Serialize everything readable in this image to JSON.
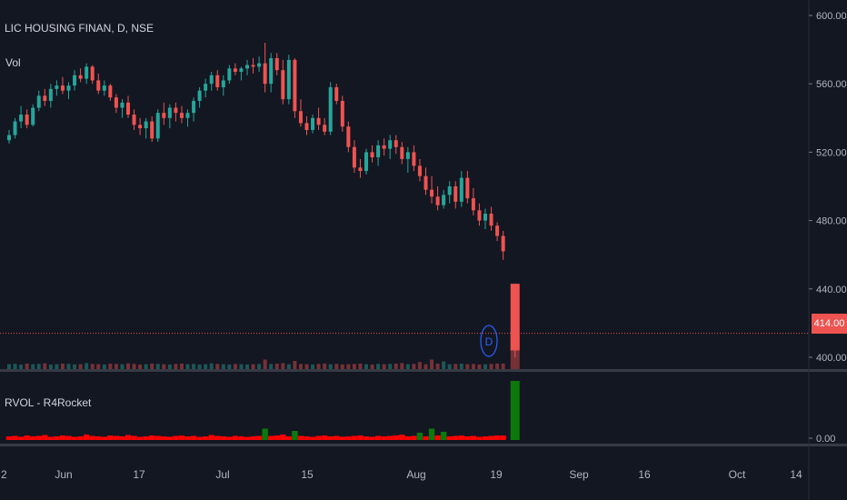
{
  "chart_data": {
    "type": "candlestick",
    "symbol_title": "LIC HOUSING FINAN, D, NSE",
    "volume_label": "Vol",
    "indicator_label": "RVOL - R4Rocket",
    "last_price_label": "414.00",
    "last_price": 414,
    "price_axis_ticks": [
      "600.00",
      "560.00",
      "520.00",
      "480.00",
      "440.00",
      "400.00"
    ],
    "price_axis_values": [
      600,
      560,
      520,
      480,
      440,
      400
    ],
    "price_ylim": [
      398,
      614
    ],
    "indicator_axis_tick": "0.00",
    "x_axis_labels": [
      "2",
      "Jun",
      "17",
      "Jul",
      "15",
      "Aug",
      "19",
      "Sep",
      "16",
      "Oct",
      "14"
    ],
    "dividend_marker": "D",
    "candles": [
      [
        527,
        533,
        525,
        530
      ],
      [
        530,
        540,
        528,
        538
      ],
      [
        538,
        547,
        534,
        542
      ],
      [
        542,
        545,
        534,
        536
      ],
      [
        536,
        548,
        535,
        546
      ],
      [
        546,
        556,
        544,
        553
      ],
      [
        553,
        557,
        547,
        550
      ],
      [
        550,
        560,
        546,
        557
      ],
      [
        557,
        562,
        553,
        559
      ],
      [
        559,
        564,
        554,
        556
      ],
      [
        556,
        561,
        551,
        559
      ],
      [
        559,
        568,
        556,
        565
      ],
      [
        565,
        569,
        561,
        563
      ],
      [
        563,
        572,
        560,
        570
      ],
      [
        570,
        571,
        560,
        562
      ],
      [
        562,
        566,
        554,
        556
      ],
      [
        556,
        562,
        553,
        559
      ],
      [
        559,
        560,
        550,
        552
      ],
      [
        552,
        554,
        543,
        546
      ],
      [
        546,
        551,
        540,
        549
      ],
      [
        549,
        553,
        540,
        542
      ],
      [
        542,
        545,
        533,
        536
      ],
      [
        536,
        540,
        530,
        534
      ],
      [
        534,
        540,
        528,
        538
      ],
      [
        538,
        541,
        526,
        528
      ],
      [
        528,
        545,
        526,
        543
      ],
      [
        543,
        549,
        536,
        540
      ],
      [
        540,
        548,
        534,
        546
      ],
      [
        546,
        549,
        538,
        543
      ],
      [
        543,
        547,
        537,
        540
      ],
      [
        540,
        545,
        535,
        543
      ],
      [
        543,
        552,
        538,
        550
      ],
      [
        550,
        558,
        546,
        556
      ],
      [
        556,
        563,
        552,
        560
      ],
      [
        560,
        567,
        556,
        565
      ],
      [
        565,
        568,
        556,
        558
      ],
      [
        558,
        565,
        553,
        562
      ],
      [
        562,
        571,
        560,
        569
      ],
      [
        569,
        572,
        565,
        567
      ],
      [
        567,
        570,
        562,
        569
      ],
      [
        569,
        574,
        565,
        571
      ],
      [
        571,
        575,
        566,
        570
      ],
      [
        570,
        576,
        567,
        572
      ],
      [
        572,
        584,
        555,
        560
      ],
      [
        560,
        578,
        555,
        575
      ],
      [
        575,
        578,
        565,
        568
      ],
      [
        568,
        574,
        548,
        551
      ],
      [
        551,
        577,
        548,
        574
      ],
      [
        574,
        575,
        540,
        544
      ],
      [
        544,
        551,
        535,
        537
      ],
      [
        537,
        541,
        530,
        533
      ],
      [
        533,
        542,
        531,
        540
      ],
      [
        540,
        546,
        533,
        536
      ],
      [
        536,
        540,
        530,
        532
      ],
      [
        532,
        561,
        530,
        558
      ],
      [
        558,
        560,
        548,
        550
      ],
      [
        550,
        553,
        532,
        535
      ],
      [
        535,
        538,
        520,
        523
      ],
      [
        523,
        527,
        508,
        511
      ],
      [
        511,
        516,
        505,
        509
      ],
      [
        509,
        522,
        507,
        520
      ],
      [
        520,
        524,
        514,
        517
      ],
      [
        517,
        527,
        512,
        524
      ],
      [
        524,
        528,
        518,
        522
      ],
      [
        522,
        530,
        516,
        527
      ],
      [
        527,
        530,
        519,
        523
      ],
      [
        523,
        526,
        513,
        516
      ],
      [
        516,
        523,
        508,
        520
      ],
      [
        520,
        524,
        509,
        512
      ],
      [
        512,
        516,
        503,
        506
      ],
      [
        506,
        511,
        495,
        498
      ],
      [
        498,
        506,
        490,
        494
      ],
      [
        494,
        500,
        486,
        489
      ],
      [
        489,
        498,
        487,
        495
      ],
      [
        495,
        503,
        490,
        500
      ],
      [
        500,
        503,
        487,
        491
      ],
      [
        491,
        509,
        488,
        505
      ],
      [
        505,
        509,
        490,
        493
      ],
      [
        493,
        499,
        483,
        486
      ],
      [
        486,
        490,
        477,
        480
      ],
      [
        480,
        487,
        475,
        484
      ],
      [
        484,
        488,
        474,
        477
      ],
      [
        477,
        479,
        468,
        471
      ],
      [
        471,
        474,
        457,
        462
      ]
    ],
    "rvol_values": [
      0.8,
      0.9,
      0.7,
      1.0,
      0.8,
      0.9,
      1.1,
      0.7,
      0.8,
      1.0,
      0.9,
      0.7,
      0.8,
      1.2,
      0.9,
      0.8,
      0.7,
      1.0,
      0.9,
      0.8,
      1.1,
      0.9,
      0.7,
      0.8,
      1.0,
      0.9,
      0.8,
      0.7,
      0.9,
      1.0,
      0.8,
      0.9,
      0.7,
      0.8,
      1.1,
      0.9,
      0.8,
      0.7,
      0.9,
      0.8,
      0.7,
      0.8,
      0.9,
      2.5,
      0.9,
      1.0,
      1.2,
      0.8,
      2.0,
      0.9,
      0.8,
      0.7,
      0.9,
      1.0,
      0.8,
      0.9,
      0.7,
      0.8,
      0.9,
      1.0,
      0.8,
      0.7,
      0.9,
      0.8,
      0.9,
      1.0,
      1.2,
      0.8,
      0.9,
      1.6,
      0.8,
      2.5,
      1.0,
      1.8,
      0.8,
      0.9,
      1.0,
      0.8,
      0.9,
      0.7,
      0.8,
      0.9,
      1.0,
      1.0
    ],
    "spike": {
      "open": 443,
      "high": 443,
      "low": 400,
      "close": 404,
      "rvol": 13
    }
  },
  "colors": {
    "background": "#131722",
    "up": "#26a69a",
    "down": "#ef5350",
    "rvol_normal": "#ff0000",
    "rvol_high": "#0b7a0b",
    "price_line": "#ef5350",
    "dividend_circle": "#2962ff"
  }
}
